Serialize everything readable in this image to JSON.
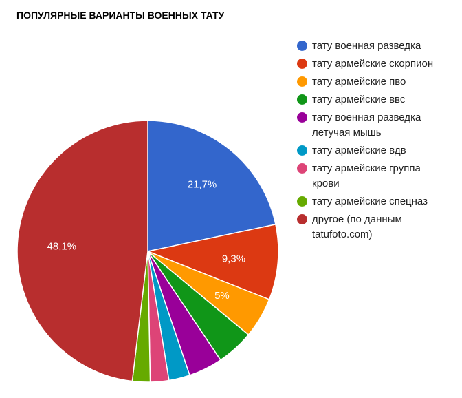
{
  "chart_data": {
    "type": "pie",
    "title": "ПОПУЛЯРНЫЕ ВАРИАНТЫ ВОЕННЫХ ТАТУ",
    "legend_position": "right",
    "categories": [
      "тату военная разведка",
      "тату армейские скорпион",
      "тату армейские пво",
      "тату армейские ввс",
      "тату военная разведка летучая мышь",
      "тату армейские вдв",
      "тату армейские группа крови",
      "тату армейские спецназ",
      "другое (по данным tatufoto.com)"
    ],
    "values": [
      21.7,
      9.3,
      5.0,
      4.6,
      4.2,
      2.6,
      2.3,
      2.2,
      48.1
    ],
    "colors": [
      "#3366cc",
      "#dc3912",
      "#ff9900",
      "#109618",
      "#990099",
      "#0099c6",
      "#dd4477",
      "#66aa00",
      "#b82e2e"
    ],
    "data_labels": [
      "21,7%",
      "9,3%",
      "5%",
      "",
      "",
      "",
      "",
      "",
      "48,1%"
    ]
  },
  "title": "ПОПУЛЯРНЫЕ ВАРИАНТЫ ВОЕННЫХ ТАТУ",
  "legend": [
    {
      "label": "тату военная разведка",
      "color": "#3366cc"
    },
    {
      "label": "тату армейские скорпион",
      "color": "#dc3912"
    },
    {
      "label": "тату армейские пво",
      "color": "#ff9900"
    },
    {
      "label": "тату армейские ввс",
      "color": "#109618"
    },
    {
      "label": "тату военная разведка летучая мышь",
      "color": "#990099"
    },
    {
      "label": "тату армейские вдв",
      "color": "#0099c6"
    },
    {
      "label": "тату армейские группа крови",
      "color": "#dd4477"
    },
    {
      "label": "тату армейские спецназ",
      "color": "#66aa00"
    },
    {
      "label": "другое (по данным tatufoto.com)",
      "color": "#b82e2e"
    }
  ]
}
